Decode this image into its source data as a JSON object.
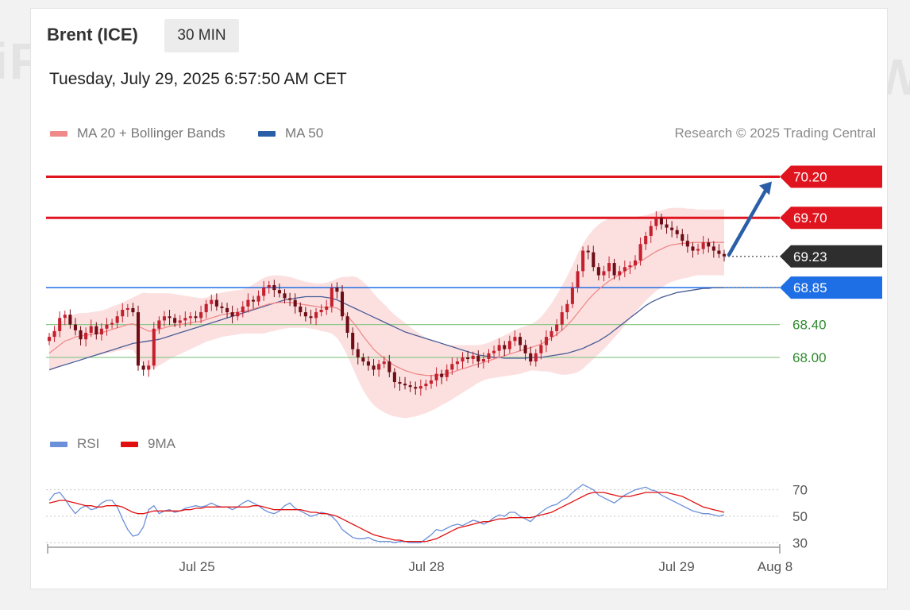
{
  "header": {
    "title": "Brent (ICE)",
    "timeframe": "30 MIN",
    "timestamp": "Tuesday, July 29, 2025 6:57:50 AM CET",
    "credit": "Research © 2025 Trading Central"
  },
  "legend": {
    "ma20": "MA 20 + Bollinger Bands",
    "ma50": "MA 50",
    "rsi": "RSI",
    "ma9": "9MA"
  },
  "colors": {
    "resistance": "#e0141e",
    "support": "#8cc98c",
    "pivot": "#1e6fe6",
    "last_price": "#2e2e2e",
    "candle_up": "#c4202e",
    "candle_down": "#6e0d16",
    "ma20": "#f08a8a",
    "ma50": "#4a5d96",
    "bands": "#fbd6d6",
    "rsi": "#6b8fd8",
    "ma9": "#e01010",
    "arrow": "#2a5fa8"
  },
  "chart_data": {
    "type": "candlestick",
    "price_range": [
      67.4,
      70.35
    ],
    "x_ticks": [
      "Jul 25",
      "Jul 28",
      "Jul 29",
      "Aug 8"
    ],
    "levels": [
      {
        "value": 70.2,
        "label": "70.20",
        "kind": "resistance"
      },
      {
        "value": 69.7,
        "label": "69.70",
        "kind": "resistance"
      },
      {
        "value": 69.23,
        "label": "69.23",
        "kind": "last"
      },
      {
        "value": 68.85,
        "label": "68.85",
        "kind": "pivot"
      },
      {
        "value": 68.4,
        "label": "68.40",
        "kind": "support"
      },
      {
        "value": 68.0,
        "label": "68.00",
        "kind": "support"
      }
    ],
    "target_arrow": {
      "from": 69.23,
      "to": 70.2
    },
    "close": [
      68.25,
      68.32,
      68.48,
      68.52,
      68.4,
      68.33,
      68.22,
      68.3,
      68.38,
      68.28,
      68.35,
      68.4,
      68.42,
      68.5,
      68.58,
      68.6,
      68.55,
      67.9,
      67.85,
      67.9,
      68.35,
      68.45,
      68.5,
      68.48,
      68.42,
      68.45,
      68.48,
      68.5,
      68.48,
      68.55,
      68.65,
      68.7,
      68.62,
      68.6,
      68.55,
      68.5,
      68.55,
      68.62,
      68.7,
      68.68,
      68.75,
      68.85,
      68.88,
      68.82,
      68.78,
      68.72,
      68.7,
      68.62,
      68.55,
      68.5,
      68.48,
      68.55,
      68.58,
      68.62,
      68.85,
      68.8,
      68.5,
      68.3,
      68.1,
      68.0,
      67.95,
      67.9,
      67.85,
      67.92,
      67.95,
      67.82,
      67.7,
      67.68,
      67.66,
      67.64,
      67.62,
      67.65,
      67.68,
      67.72,
      67.8,
      67.76,
      67.85,
      67.92,
      67.95,
      68.0,
      67.98,
      68.02,
      67.95,
      67.98,
      68.05,
      68.08,
      68.15,
      68.1,
      68.2,
      68.25,
      68.15,
      68.05,
      67.95,
      68.05,
      68.15,
      68.25,
      68.32,
      68.4,
      68.55,
      68.65,
      68.85,
      69.05,
      69.3,
      69.28,
      69.1,
      69.0,
      69.05,
      69.15,
      69.0,
      69.05,
      69.1,
      69.12,
      69.18,
      69.38,
      69.48,
      69.6,
      69.7,
      69.62,
      69.58,
      69.55,
      69.5,
      69.42,
      69.35,
      69.3,
      69.32,
      69.4,
      69.35,
      69.3,
      69.26,
      69.23
    ],
    "ma20": [
      68.05,
      68.1,
      68.15,
      68.2,
      68.22,
      68.25,
      68.26,
      68.27,
      68.28,
      68.29,
      68.3,
      68.32,
      68.34,
      68.36,
      68.38,
      68.4,
      68.41,
      68.38,
      68.35,
      68.32,
      68.32,
      68.34,
      68.36,
      68.38,
      68.39,
      68.4,
      68.41,
      68.42,
      68.43,
      68.44,
      68.46,
      68.48,
      68.5,
      68.52,
      68.53,
      68.54,
      68.55,
      68.56,
      68.57,
      68.59,
      68.61,
      68.63,
      68.65,
      68.66,
      68.67,
      68.67,
      68.67,
      68.66,
      68.65,
      68.64,
      68.63,
      68.62,
      68.61,
      68.61,
      68.61,
      68.6,
      68.56,
      68.5,
      68.43,
      68.35,
      68.26,
      68.18,
      68.1,
      68.04,
      67.99,
      67.94,
      67.9,
      67.87,
      67.84,
      67.82,
      67.8,
      67.79,
      67.78,
      67.78,
      67.78,
      67.79,
      67.8,
      67.82,
      67.84,
      67.86,
      67.88,
      67.9,
      67.92,
      67.94,
      67.96,
      67.98,
      68.0,
      68.02,
      68.04,
      68.06,
      68.08,
      68.1,
      68.12,
      68.14,
      68.16,
      68.2,
      68.24,
      68.28,
      68.33,
      68.39,
      68.46,
      68.54,
      68.62,
      68.7,
      68.77,
      68.83,
      68.88,
      68.93,
      68.97,
      69.01,
      69.05,
      69.09,
      69.13,
      69.17,
      69.21,
      69.25,
      69.29,
      69.32,
      69.35,
      69.37,
      69.38,
      69.39,
      69.39,
      69.4,
      69.4,
      69.4,
      69.4,
      69.4,
      69.4,
      69.4
    ],
    "ma50": [
      67.85,
      67.87,
      67.89,
      67.91,
      67.93,
      67.95,
      67.97,
      67.99,
      68.01,
      68.03,
      68.05,
      68.07,
      68.09,
      68.11,
      68.13,
      68.15,
      68.17,
      68.18,
      68.19,
      68.2,
      68.21,
      68.22,
      68.24,
      68.26,
      68.28,
      68.3,
      68.32,
      68.34,
      68.36,
      68.38,
      68.4,
      68.42,
      68.44,
      68.46,
      68.48,
      68.5,
      68.52,
      68.54,
      68.56,
      68.58,
      68.6,
      68.62,
      68.64,
      68.66,
      68.68,
      68.7,
      68.71,
      68.72,
      68.73,
      68.74,
      68.74,
      68.74,
      68.74,
      68.73,
      68.72,
      68.7,
      68.67,
      68.64,
      68.61,
      68.58,
      68.55,
      68.52,
      68.49,
      68.46,
      68.43,
      68.4,
      68.37,
      68.34,
      68.31,
      68.29,
      68.27,
      68.25,
      68.23,
      68.21,
      68.19,
      68.17,
      68.15,
      68.13,
      68.11,
      68.09,
      68.07,
      68.05,
      68.03,
      68.02,
      68.01,
      68.0,
      68.0,
      67.99,
      67.99,
      67.99,
      67.99,
      67.99,
      68.0,
      68.0,
      68.0,
      68.01,
      68.02,
      68.03,
      68.04,
      68.05,
      68.07,
      68.09,
      68.11,
      68.14,
      68.17,
      68.2,
      68.24,
      68.28,
      68.33,
      68.38,
      68.43,
      68.48,
      68.53,
      68.58,
      68.63,
      68.67,
      68.7,
      68.73,
      68.75,
      68.77,
      68.79,
      68.8,
      68.81,
      68.82,
      68.83,
      68.84,
      68.84,
      68.85,
      68.85,
      68.85
    ],
    "band_width": [
      0.22,
      0.24,
      0.26,
      0.28,
      0.28,
      0.28,
      0.28,
      0.27,
      0.27,
      0.27,
      0.27,
      0.27,
      0.28,
      0.28,
      0.29,
      0.3,
      0.32,
      0.38,
      0.44,
      0.46,
      0.46,
      0.44,
      0.42,
      0.4,
      0.38,
      0.36,
      0.34,
      0.32,
      0.3,
      0.28,
      0.27,
      0.27,
      0.27,
      0.27,
      0.27,
      0.27,
      0.27,
      0.27,
      0.28,
      0.3,
      0.32,
      0.34,
      0.34,
      0.34,
      0.33,
      0.32,
      0.31,
      0.3,
      0.29,
      0.28,
      0.28,
      0.28,
      0.29,
      0.3,
      0.32,
      0.36,
      0.42,
      0.48,
      0.56,
      0.62,
      0.66,
      0.68,
      0.68,
      0.67,
      0.66,
      0.64,
      0.62,
      0.6,
      0.58,
      0.55,
      0.52,
      0.49,
      0.46,
      0.43,
      0.4,
      0.37,
      0.35,
      0.33,
      0.31,
      0.29,
      0.27,
      0.25,
      0.23,
      0.22,
      0.22,
      0.23,
      0.24,
      0.25,
      0.26,
      0.27,
      0.28,
      0.28,
      0.28,
      0.3,
      0.33,
      0.37,
      0.42,
      0.48,
      0.54,
      0.6,
      0.66,
      0.72,
      0.76,
      0.78,
      0.79,
      0.79,
      0.78,
      0.76,
      0.73,
      0.7,
      0.66,
      0.62,
      0.58,
      0.55,
      0.52,
      0.5,
      0.48,
      0.47,
      0.46,
      0.45,
      0.44,
      0.43,
      0.42,
      0.41,
      0.4,
      0.4,
      0.4,
      0.4,
      0.4,
      0.4
    ],
    "rsi": {
      "range": [
        20,
        80
      ],
      "ticks": [
        70,
        50,
        30
      ],
      "rsi_values": [
        62,
        67,
        68,
        63,
        57,
        52,
        56,
        58,
        55,
        56,
        60,
        62,
        62,
        57,
        48,
        40,
        35,
        36,
        42,
        55,
        58,
        52,
        54,
        55,
        53,
        54,
        56,
        57,
        58,
        57,
        58,
        60,
        58,
        57,
        57,
        55,
        57,
        60,
        62,
        60,
        58,
        55,
        53,
        52,
        54,
        58,
        60,
        56,
        54,
        52,
        50,
        51,
        53,
        52,
        50,
        46,
        40,
        37,
        34,
        33,
        33,
        34,
        32,
        31,
        31,
        31,
        30,
        31,
        31,
        30,
        30,
        30,
        33,
        36,
        40,
        39,
        41,
        43,
        44,
        43,
        45,
        47,
        46,
        44,
        46,
        49,
        51,
        50,
        53,
        53,
        50,
        48,
        46,
        50,
        53,
        56,
        58,
        59,
        62,
        64,
        68,
        71,
        74,
        72,
        70,
        66,
        64,
        62,
        60,
        63,
        66,
        68,
        70,
        71,
        72,
        70,
        69,
        66,
        64,
        62,
        60,
        58,
        56,
        54,
        53,
        52,
        52,
        51,
        50,
        51
      ],
      "ma9_values": [
        60,
        61,
        62,
        62,
        61,
        60,
        59,
        58,
        58,
        57,
        57,
        58,
        58,
        58,
        57,
        55,
        53,
        52,
        52,
        53,
        54,
        54,
        54,
        54,
        54,
        54,
        55,
        55,
        56,
        56,
        57,
        57,
        57,
        57,
        57,
        57,
        57,
        57,
        57,
        58,
        58,
        57,
        56,
        55,
        55,
        55,
        55,
        55,
        55,
        54,
        53,
        53,
        52,
        52,
        51,
        50,
        48,
        46,
        44,
        42,
        40,
        38,
        36,
        35,
        34,
        33,
        32,
        32,
        31,
        31,
        31,
        31,
        31,
        32,
        33,
        35,
        37,
        39,
        41,
        42,
        43,
        44,
        45,
        46,
        46,
        47,
        48,
        48,
        49,
        49,
        49,
        49,
        49,
        50,
        51,
        52,
        53,
        55,
        57,
        59,
        61,
        63,
        65,
        67,
        68,
        68,
        68,
        67,
        66,
        65,
        65,
        65,
        66,
        67,
        68,
        68,
        68,
        68,
        68,
        67,
        66,
        65,
        63,
        61,
        59,
        57,
        56,
        55,
        54,
        53
      ]
    }
  }
}
